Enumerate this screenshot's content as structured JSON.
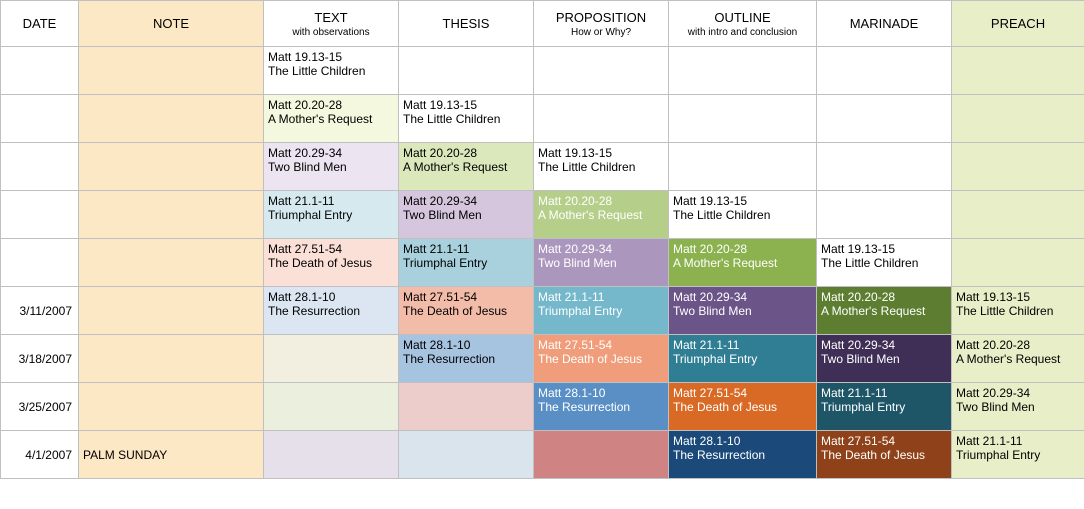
{
  "columns": [
    {
      "key": "date",
      "label": "DATE",
      "sublabel": "",
      "width": 78,
      "header_bg": "#ffffff"
    },
    {
      "key": "note",
      "label": "NOTE",
      "sublabel": "",
      "width": 185,
      "header_bg": "#fce8c4"
    },
    {
      "key": "text",
      "label": "TEXT",
      "sublabel": "with observations",
      "width": 135,
      "header_bg": "#ffffff"
    },
    {
      "key": "thesis",
      "label": "THESIS",
      "sublabel": "",
      "width": 135,
      "header_bg": "#ffffff"
    },
    {
      "key": "proposition",
      "label": "PROPOSITION",
      "sublabel": "How or Why?",
      "width": 135,
      "header_bg": "#ffffff"
    },
    {
      "key": "outline",
      "label": "OUTLINE",
      "sublabel": "with intro and conclusion",
      "width": 148,
      "header_bg": "#ffffff"
    },
    {
      "key": "marinade",
      "label": "MARINADE",
      "sublabel": "",
      "width": 135,
      "header_bg": "#ffffff"
    },
    {
      "key": "preach",
      "label": "PREACH",
      "sublabel": "",
      "width": 133,
      "header_bg": "#e8efc8"
    }
  ],
  "rows": [
    {
      "date": "",
      "note": "",
      "cells": {
        "text": {
          "line1": "Matt 19.13-15",
          "line2": "The Little Children",
          "bg": "#ffffff",
          "fg": "#000000"
        },
        "thesis": {
          "line1": "",
          "line2": "",
          "bg": "#ffffff",
          "fg": "#000000"
        },
        "proposition": {
          "line1": "",
          "line2": "",
          "bg": "#ffffff",
          "fg": "#000000"
        },
        "outline": {
          "line1": "",
          "line2": "",
          "bg": "#ffffff",
          "fg": "#000000"
        },
        "marinade": {
          "line1": "",
          "line2": "",
          "bg": "#ffffff",
          "fg": "#000000"
        },
        "preach": {
          "line1": "",
          "line2": "",
          "bg": "#e8efc8",
          "fg": "#000000"
        }
      }
    },
    {
      "date": "",
      "note": "",
      "cells": {
        "text": {
          "line1": "Matt 20.20-28",
          "line2": "A Mother's Request",
          "bg": "#f3f8de",
          "fg": "#000000"
        },
        "thesis": {
          "line1": "Matt 19.13-15",
          "line2": "The Little Children",
          "bg": "#ffffff",
          "fg": "#000000"
        },
        "proposition": {
          "line1": "",
          "line2": "",
          "bg": "#ffffff",
          "fg": "#000000"
        },
        "outline": {
          "line1": "",
          "line2": "",
          "bg": "#ffffff",
          "fg": "#000000"
        },
        "marinade": {
          "line1": "",
          "line2": "",
          "bg": "#ffffff",
          "fg": "#000000"
        },
        "preach": {
          "line1": "",
          "line2": "",
          "bg": "#e8efc8",
          "fg": "#000000"
        }
      }
    },
    {
      "date": "",
      "note": "",
      "cells": {
        "text": {
          "line1": "Matt 20.29-34",
          "line2": "Two Blind Men",
          "bg": "#ece4f0",
          "fg": "#000000"
        },
        "thesis": {
          "line1": "Matt 20.20-28",
          "line2": "A Mother's Request",
          "bg": "#dbe8bc",
          "fg": "#000000"
        },
        "proposition": {
          "line1": "Matt 19.13-15",
          "line2": "The Little Children",
          "bg": "#ffffff",
          "fg": "#000000"
        },
        "outline": {
          "line1": "",
          "line2": "",
          "bg": "#ffffff",
          "fg": "#000000"
        },
        "marinade": {
          "line1": "",
          "line2": "",
          "bg": "#ffffff",
          "fg": "#000000"
        },
        "preach": {
          "line1": "",
          "line2": "",
          "bg": "#e8efc8",
          "fg": "#000000"
        }
      }
    },
    {
      "date": "",
      "note": "",
      "cells": {
        "text": {
          "line1": "Matt 21.1-11",
          "line2": "Triumphal Entry",
          "bg": "#d6e9ef",
          "fg": "#000000"
        },
        "thesis": {
          "line1": "Matt 20.29-34",
          "line2": "Two Blind Men",
          "bg": "#d5c6de",
          "fg": "#000000"
        },
        "proposition": {
          "line1": "Matt 20.20-28",
          "line2": "A Mother's Request",
          "bg": "#b5cf8a",
          "fg": "#ffffff"
        },
        "outline": {
          "line1": "Matt 19.13-15",
          "line2": "The Little Children",
          "bg": "#ffffff",
          "fg": "#000000"
        },
        "marinade": {
          "line1": "",
          "line2": "",
          "bg": "#ffffff",
          "fg": "#000000"
        },
        "preach": {
          "line1": "",
          "line2": "",
          "bg": "#e8efc8",
          "fg": "#000000"
        }
      }
    },
    {
      "date": "",
      "note": "",
      "cells": {
        "text": {
          "line1": "Matt 27.51-54",
          "line2": "The Death of Jesus",
          "bg": "#fbe0d8",
          "fg": "#000000"
        },
        "thesis": {
          "line1": "Matt 21.1-11",
          "line2": "Triumphal Entry",
          "bg": "#a9d1dd",
          "fg": "#000000"
        },
        "proposition": {
          "line1": "Matt 20.29-34",
          "line2": "Two Blind Men",
          "bg": "#ab97bd",
          "fg": "#ffffff"
        },
        "outline": {
          "line1": "Matt 20.20-28",
          "line2": "A Mother's Request",
          "bg": "#8bb24e",
          "fg": "#ffffff"
        },
        "marinade": {
          "line1": "Matt 19.13-15",
          "line2": "The Little Children",
          "bg": "#ffffff",
          "fg": "#000000"
        },
        "preach": {
          "line1": "",
          "line2": "",
          "bg": "#e8efc8",
          "fg": "#000000"
        }
      }
    },
    {
      "date": "3/11/2007",
      "note": "",
      "cells": {
        "text": {
          "line1": "Matt 28.1-10",
          "line2": "The Resurrection",
          "bg": "#dbe6f2",
          "fg": "#000000"
        },
        "thesis": {
          "line1": "Matt 27.51-54",
          "line2": "The Death of Jesus",
          "bg": "#f3bca9",
          "fg": "#000000"
        },
        "proposition": {
          "line1": "Matt 21.1-11",
          "line2": "Triumphal Entry",
          "bg": "#75b8cb",
          "fg": "#ffffff"
        },
        "outline": {
          "line1": "Matt 20.29-34",
          "line2": "Two Blind Men",
          "bg": "#6a5488",
          "fg": "#ffffff"
        },
        "marinade": {
          "line1": "Matt 20.20-28",
          "line2": "A Mother's Request",
          "bg": "#5d7e30",
          "fg": "#ffffff"
        },
        "preach": {
          "line1": "Matt 19.13-15",
          "line2": "The Little Children",
          "bg": "#e8efc8",
          "fg": "#000000"
        }
      }
    },
    {
      "date": "3/18/2007",
      "note": "",
      "cells": {
        "text": {
          "line1": "",
          "line2": "",
          "bg": "#f2efe0",
          "fg": "#000000"
        },
        "thesis": {
          "line1": "Matt 28.1-10",
          "line2": "The Resurrection",
          "bg": "#a6c3e0",
          "fg": "#000000"
        },
        "proposition": {
          "line1": "Matt 27.51-54",
          "line2": "The Death of Jesus",
          "bg": "#ef9d7b",
          "fg": "#ffffff"
        },
        "outline": {
          "line1": "Matt 21.1-11",
          "line2": "Triumphal Entry",
          "bg": "#307e94",
          "fg": "#ffffff"
        },
        "marinade": {
          "line1": "Matt 20.29-34",
          "line2": "Two Blind Men",
          "bg": "#3f2f56",
          "fg": "#ffffff"
        },
        "preach": {
          "line1": "Matt 20.20-28",
          "line2": "A Mother's Request",
          "bg": "#e8efc8",
          "fg": "#000000"
        }
      }
    },
    {
      "date": "3/25/2007",
      "note": "",
      "cells": {
        "text": {
          "line1": "",
          "line2": "",
          "bg": "#eaf0dd",
          "fg": "#000000"
        },
        "thesis": {
          "line1": "",
          "line2": "",
          "bg": "#eccdcb",
          "fg": "#000000"
        },
        "proposition": {
          "line1": "Matt 28.1-10",
          "line2": "The Resurrection",
          "bg": "#5a8fc6",
          "fg": "#ffffff"
        },
        "outline": {
          "line1": "Matt 27.51-54",
          "line2": "The Death of Jesus",
          "bg": "#d96a26",
          "fg": "#ffffff"
        },
        "marinade": {
          "line1": "Matt 21.1-11",
          "line2": "Triumphal Entry",
          "bg": "#1e5668",
          "fg": "#ffffff"
        },
        "preach": {
          "line1": "Matt 20.29-34",
          "line2": "Two Blind Men",
          "bg": "#e8efc8",
          "fg": "#000000"
        }
      }
    },
    {
      "date": "4/1/2007",
      "note": "PALM SUNDAY",
      "cells": {
        "text": {
          "line1": "",
          "line2": "",
          "bg": "#e6e0ea",
          "fg": "#000000"
        },
        "thesis": {
          "line1": "",
          "line2": "",
          "bg": "#d9e4ed",
          "fg": "#000000"
        },
        "proposition": {
          "line1": "",
          "line2": "",
          "bg": "#cf8382",
          "fg": "#ffffff"
        },
        "outline": {
          "line1": "Matt 28.1-10",
          "line2": "The Resurrection",
          "bg": "#1b4a7a",
          "fg": "#ffffff"
        },
        "marinade": {
          "line1": "Matt 27.51-54",
          "line2": "The Death of Jesus",
          "bg": "#8f421a",
          "fg": "#ffffff"
        },
        "preach": {
          "line1": "Matt 21.1-11",
          "line2": "Triumphal Entry",
          "bg": "#e8efc8",
          "fg": "#000000"
        }
      }
    }
  ],
  "note_col_bg": "#fce8c4",
  "date_col_bg": "#ffffff"
}
